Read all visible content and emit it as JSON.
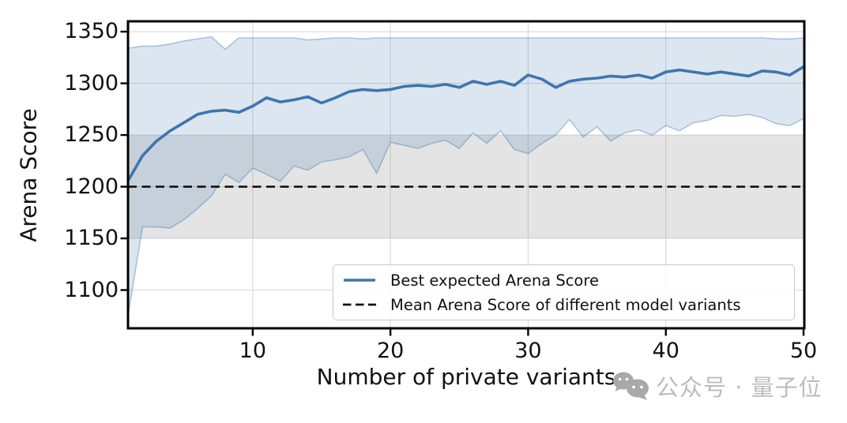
{
  "axes": {
    "xlabel": "Number of private variants",
    "ylabel": "Arena Score",
    "y_ticks": [
      1100,
      1150,
      1200,
      1250,
      1300,
      1350
    ],
    "x_ticks": [
      10,
      20,
      30,
      40,
      50
    ]
  },
  "legend": {
    "items": [
      {
        "label": "Best expected Arena Score",
        "style": "solid-blue-line"
      },
      {
        "label": "Mean Arena Score of different model variants",
        "style": "dashed-black-line"
      }
    ]
  },
  "watermark": {
    "icon": "wechat-icon",
    "text": "公众号 · 量子位"
  },
  "colors": {
    "line_blue": "#3d76af",
    "band_blue_fill": "rgba(61,118,175,0.18)",
    "band_blue_edge": "rgba(61,118,175,0.38)",
    "gray_band_fill": "rgba(127,127,127,0.21)",
    "mean_line": "#111111",
    "grid": "#dcdcdc",
    "spine": "#000000",
    "watermark_gray": "#a9a9a9"
  },
  "chart_data": {
    "type": "line",
    "title": "",
    "xlabel": "Number of private variants",
    "ylabel": "Arena Score",
    "xlim": [
      1,
      50
    ],
    "ylim": [
      1063,
      1360
    ],
    "grid": true,
    "legend_position": "lower right",
    "x": [
      1,
      2,
      3,
      4,
      5,
      6,
      7,
      8,
      9,
      10,
      11,
      12,
      13,
      14,
      15,
      16,
      17,
      18,
      19,
      20,
      21,
      22,
      23,
      24,
      25,
      26,
      27,
      28,
      29,
      30,
      31,
      32,
      33,
      34,
      35,
      36,
      37,
      38,
      39,
      40,
      41,
      42,
      43,
      44,
      45,
      46,
      47,
      48,
      49,
      50
    ],
    "series": [
      {
        "name": "Best expected Arena Score",
        "style": "solid",
        "values": [
          1207,
          1230,
          1244,
          1254,
          1262,
          1270,
          1273,
          1274,
          1272,
          1278,
          1286,
          1282,
          1284,
          1287,
          1281,
          1286,
          1292,
          1294,
          1293,
          1294,
          1297,
          1298,
          1297,
          1299,
          1296,
          1302,
          1299,
          1302,
          1298,
          1308,
          1304,
          1296,
          1302,
          1304,
          1305,
          1307,
          1306,
          1308,
          1305,
          1311,
          1313,
          1311,
          1309,
          1311,
          1309,
          1307,
          1312,
          1311,
          1308,
          1316
        ]
      },
      {
        "name": "Confidence band upper",
        "style": "band-edge",
        "values": [
          1334,
          1336,
          1336,
          1338,
          1341,
          1343,
          1345,
          1333,
          1344,
          1344,
          1344,
          1344,
          1344,
          1342,
          1343,
          1344,
          1344,
          1343,
          1344,
          1344,
          1344,
          1344,
          1344,
          1344,
          1344,
          1344,
          1344,
          1344,
          1344,
          1344,
          1344,
          1344,
          1344,
          1344,
          1344,
          1344,
          1344,
          1344,
          1344,
          1344,
          1344,
          1344,
          1344,
          1344,
          1344,
          1344,
          1344,
          1343,
          1343,
          1344
        ]
      },
      {
        "name": "Confidence band lower",
        "style": "band-edge",
        "values": [
          1080,
          1161,
          1161,
          1160,
          1168,
          1179,
          1191,
          1212,
          1204,
          1218,
          1212,
          1205,
          1220,
          1216,
          1224,
          1226,
          1229,
          1236,
          1213,
          1243,
          1240,
          1237,
          1242,
          1245,
          1237,
          1252,
          1242,
          1254,
          1236,
          1232,
          1242,
          1250,
          1265,
          1248,
          1258,
          1244,
          1252,
          1255,
          1250,
          1259,
          1254,
          1262,
          1264,
          1269,
          1268,
          1270,
          1267,
          1261,
          1259,
          1266
        ]
      },
      {
        "name": "Mean Arena Score of different model variants",
        "style": "dashed",
        "values": [
          1200,
          1200,
          1200,
          1200,
          1200,
          1200,
          1200,
          1200,
          1200,
          1200,
          1200,
          1200,
          1200,
          1200,
          1200,
          1200,
          1200,
          1200,
          1200,
          1200,
          1200,
          1200,
          1200,
          1200,
          1200,
          1200,
          1200,
          1200,
          1200,
          1200,
          1200,
          1200,
          1200,
          1200,
          1200,
          1200,
          1200,
          1200,
          1200,
          1200,
          1200,
          1200,
          1200,
          1200,
          1200,
          1200,
          1200,
          1200,
          1200,
          1200
        ]
      }
    ],
    "gray_band": {
      "name": "Mean ± std band",
      "low": 1150,
      "high": 1250
    }
  }
}
